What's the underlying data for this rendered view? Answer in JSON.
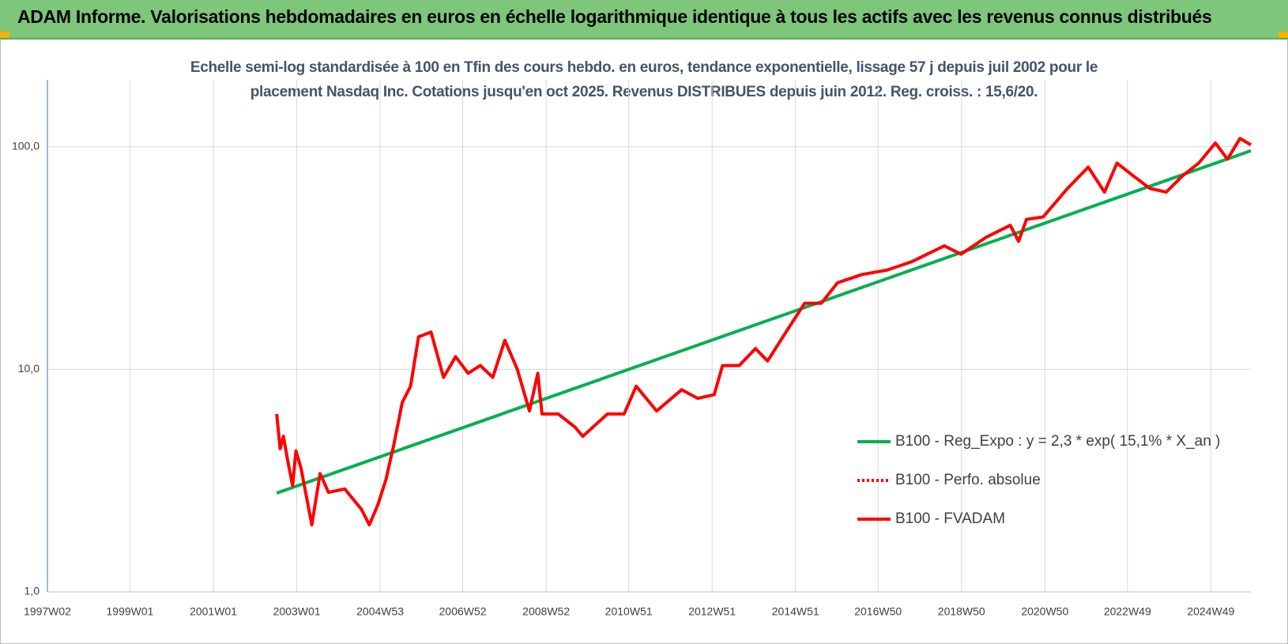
{
  "chart_data": {
    "type": "line",
    "title": "ADAM Informe. Valorisations hebdomadaires en euros en échelle logarithmique identique à tous les actifs avec les revenus connus distribués",
    "subtitle": "Echelle semi-log standardisée à 100 en Tfin des cours hebdo. en euros, tendance exponentielle, lissage 57 j depuis juil 2002 pour le placement Nasdaq Inc. Cotations jusqu'en oct 2025. Revenus DISTRIBUES depuis juin 2012. Reg. croiss. : 15,6/20.",
    "log_y": true,
    "grid": true,
    "legend": "right",
    "xlim": [
      1997.02,
      2025.88
    ],
    "xticks": [
      {
        "value": 1997.02,
        "label": "1997W02"
      },
      {
        "value": 1999.0,
        "label": "1999W01"
      },
      {
        "value": 2001.0,
        "label": "2001W01"
      },
      {
        "value": 2003.0,
        "label": "2003W01"
      },
      {
        "value": 2005.0,
        "label": "2004W53"
      },
      {
        "value": 2006.98,
        "label": "2006W52"
      },
      {
        "value": 2008.98,
        "label": "2008W52"
      },
      {
        "value": 2010.96,
        "label": "2010W51"
      },
      {
        "value": 2012.96,
        "label": "2012W51"
      },
      {
        "value": 2014.96,
        "label": "2014W51"
      },
      {
        "value": 2016.94,
        "label": "2016W50"
      },
      {
        "value": 2018.94,
        "label": "2018W50"
      },
      {
        "value": 2020.94,
        "label": "2020W50"
      },
      {
        "value": 2022.92,
        "label": "2022W49"
      },
      {
        "value": 2024.92,
        "label": "2024W49"
      }
    ],
    "ylim": [
      1,
      200
    ],
    "yticks": [
      {
        "value": 1,
        "label": "1,0"
      },
      {
        "value": 10,
        "label": "10,0"
      },
      {
        "value": 100,
        "label": "100,0"
      }
    ],
    "series": [
      {
        "name": "B100 - Reg_Expo : y = 2,3 * exp( 15,1% *  X_an )",
        "color": "#00b050",
        "dash": "solid",
        "x": [
          2002.52,
          2025.88
        ],
        "values": [
          2.78,
          96
        ]
      },
      {
        "name": "B100 - Perfo. absolue",
        "color": "#ff0000",
        "dash": "dotted",
        "x": [],
        "values": []
      },
      {
        "name": "B100 - FVADAM",
        "color": "#ff0000",
        "dash": "solid",
        "x": [
          2002.52,
          2002.6,
          2002.68,
          2002.78,
          2002.9,
          2002.98,
          2003.1,
          2003.36,
          2003.56,
          2003.76,
          2004.15,
          2004.55,
          2004.74,
          2004.94,
          2005.14,
          2005.33,
          2005.53,
          2005.73,
          2005.92,
          2006.22,
          2006.52,
          2006.81,
          2007.11,
          2007.4,
          2007.7,
          2007.99,
          2008.29,
          2008.58,
          2008.78,
          2008.88,
          2009.27,
          2009.67,
          2009.86,
          2010.45,
          2010.85,
          2011.14,
          2011.63,
          2012.23,
          2012.62,
          2013.01,
          2013.21,
          2013.61,
          2014.0,
          2014.29,
          2014.79,
          2015.18,
          2015.58,
          2015.97,
          2016.56,
          2017.15,
          2017.74,
          2018.53,
          2018.93,
          2019.52,
          2020.11,
          2020.31,
          2020.5,
          2020.9,
          2021.49,
          2021.98,
          2022.37,
          2022.67,
          2023.06,
          2023.46,
          2023.85,
          2024.24,
          2024.63,
          2025.03,
          2025.32,
          2025.62,
          2025.88
        ],
        "values": [
          6.3,
          4.4,
          5.0,
          3.9,
          3.0,
          4.3,
          3.6,
          2.0,
          3.4,
          2.8,
          2.9,
          2.35,
          2.0,
          2.45,
          3.2,
          4.6,
          7.1,
          8.4,
          14,
          14.7,
          9.2,
          11.4,
          9.6,
          10.4,
          9.2,
          13.5,
          10,
          6.5,
          9.6,
          6.3,
          6.3,
          5.5,
          5.0,
          6.3,
          6.3,
          8.4,
          6.5,
          8.1,
          7.4,
          7.7,
          10.4,
          10.4,
          12.4,
          10.9,
          15.3,
          19.8,
          19.8,
          24.5,
          26.7,
          27.9,
          30.4,
          35.9,
          32.9,
          39.1,
          44.4,
          37.6,
          47.2,
          48.4,
          65.2,
          81,
          62.6,
          84.5,
          74,
          65,
          62.6,
          74,
          84.5,
          104,
          88,
          109,
          102
        ]
      }
    ]
  }
}
